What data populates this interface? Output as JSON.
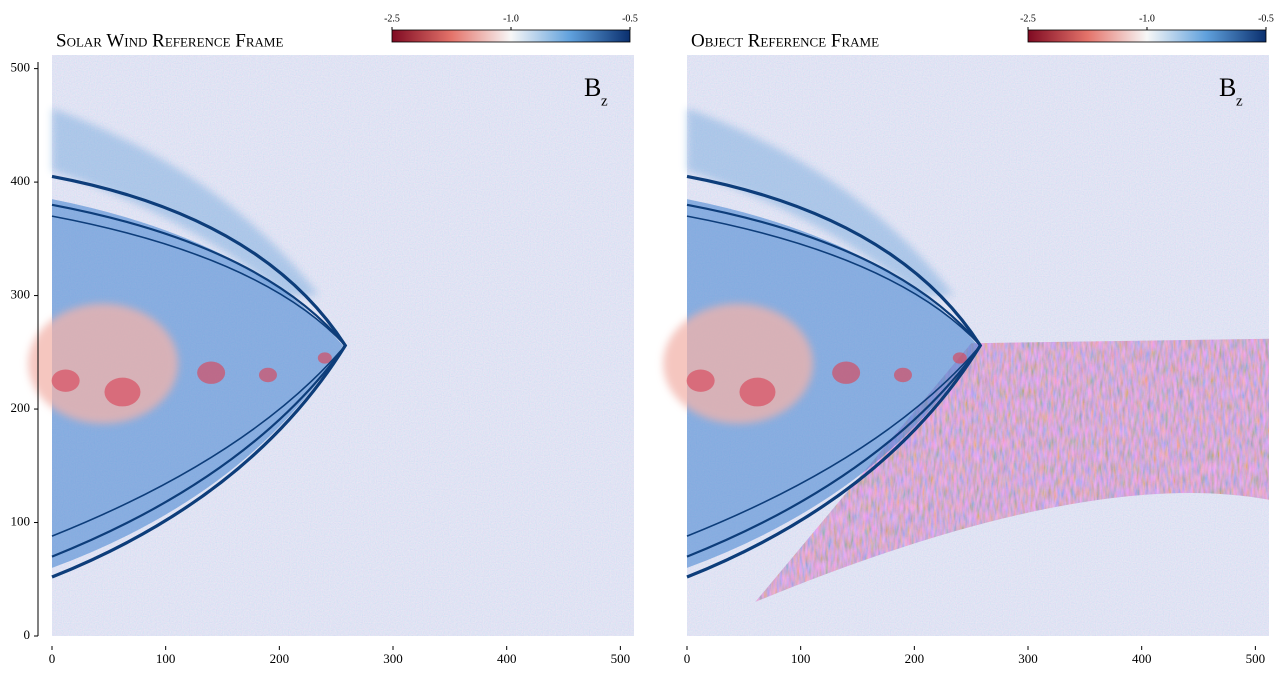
{
  "chart_data": [
    {
      "type": "heatmap",
      "title": "Solar Wind Reference Frame",
      "annotation": "B",
      "annotation_sub": "z",
      "xlim": [
        0,
        512
      ],
      "ylim": [
        0,
        512
      ],
      "xticks": [
        0,
        100,
        200,
        300,
        400,
        500
      ],
      "yticks": [
        0,
        100,
        200,
        300,
        400,
        500
      ],
      "colorbar_ticks": [
        -2.5,
        {
          "value": -1,
          "label": "-1.0"
        },
        -0.5
      ],
      "colorbar_colors": [
        "#7f0a22",
        "#e4736a",
        "#f7f7f7",
        "#5fa0dc",
        "#0a2f6e"
      ],
      "wake": false
    },
    {
      "type": "heatmap",
      "title": "Object Reference Frame",
      "annotation": "B",
      "annotation_sub": "z",
      "xlim": [
        0,
        512
      ],
      "ylim": [
        0,
        512
      ],
      "xticks": [
        0,
        100,
        200,
        300,
        400,
        500
      ],
      "colorbar_ticks": [
        -2.5,
        {
          "value": -1,
          "label": "-1.0"
        },
        -0.5
      ],
      "colorbar_colors": [
        "#7f0a22",
        "#e4736a",
        "#f7f7f7",
        "#5fa0dc",
        "#0a2f6e"
      ],
      "wake": true
    }
  ]
}
